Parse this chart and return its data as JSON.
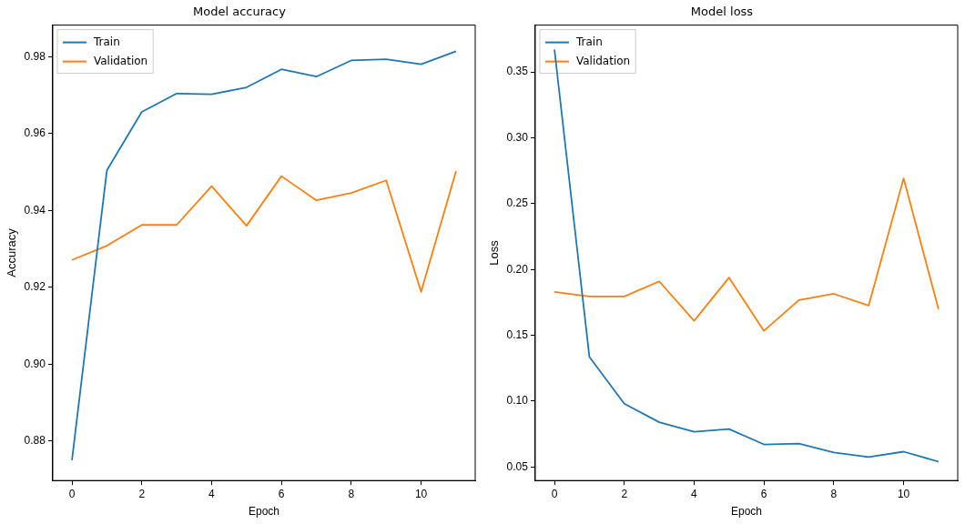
{
  "chart_data": [
    {
      "type": "line",
      "title": "Model accuracy",
      "xlabel": "Epoch",
      "ylabel": "Accuracy",
      "x": [
        0,
        1,
        2,
        3,
        4,
        5,
        6,
        7,
        8,
        9,
        10,
        11
      ],
      "xlim": [
        -0.55,
        11.55
      ],
      "xticks": [
        0,
        2,
        4,
        6,
        8,
        10
      ],
      "ylim": [
        0.8697,
        0.9882
      ],
      "yticks": [
        0.88,
        {
          "value": 0.9,
          "label": "0.90"
        },
        0.92,
        0.94,
        0.96,
        0.98
      ],
      "grid": false,
      "legend": "top left",
      "marker": "none",
      "line_style": "solid",
      "series": [
        {
          "name": "Train",
          "color": "#1f77b4",
          "values": [
            0.875,
            0.9504,
            0.9656,
            0.9704,
            0.9702,
            0.972,
            0.9767,
            0.9748,
            0.979,
            0.9793,
            0.978,
            0.9814
          ]
        },
        {
          "name": "Validation",
          "color": "#ff7f0e",
          "values": [
            0.9271,
            0.9308,
            0.9362,
            0.9362,
            0.9463,
            0.936,
            0.9489,
            0.9426,
            0.9445,
            0.9478,
            0.9188,
            0.9502
          ]
        }
      ]
    },
    {
      "type": "line",
      "title": "Model loss",
      "xlabel": "Epoch",
      "ylabel": "Loss",
      "x": [
        0,
        1,
        2,
        3,
        4,
        5,
        6,
        7,
        8,
        9,
        10,
        11
      ],
      "xlim": [
        -0.55,
        11.55
      ],
      "xticks": [
        0,
        2,
        4,
        6,
        8,
        10
      ],
      "ylim": [
        0.0397,
        0.3856
      ],
      "yticks": [
        0.05,
        {
          "value": 0.1,
          "label": "0.10"
        },
        0.15,
        {
          "value": 0.2,
          "label": "0.20"
        },
        0.25,
        {
          "value": 0.3,
          "label": "0.30"
        },
        0.35
      ],
      "grid": false,
      "legend": "top left",
      "marker": "none",
      "line_style": "solid",
      "series": [
        {
          "name": "Train",
          "color": "#1f77b4",
          "values": [
            0.367,
            0.1336,
            0.098,
            0.084,
            0.0767,
            0.0788,
            0.0671,
            0.0678,
            0.061,
            0.0575,
            0.0616,
            0.054
          ]
        },
        {
          "name": "Validation",
          "color": "#ff7f0e",
          "values": [
            0.1829,
            0.1795,
            0.1795,
            0.191,
            0.161,
            0.1938,
            0.1534,
            0.1767,
            0.1815,
            0.1726,
            0.2692,
            0.1699
          ]
        }
      ]
    }
  ]
}
